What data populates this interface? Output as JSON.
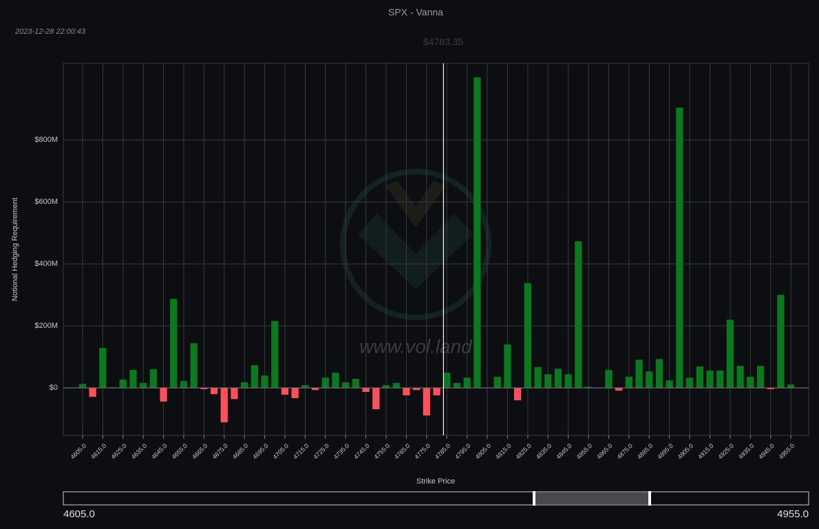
{
  "chart_data": {
    "type": "bar",
    "title": "SPX - Vanna",
    "timestamp": "2023-12-28 22:00:43",
    "spot": 4783.35,
    "spot_label": "$4783.35",
    "watermark": "www.vol.land",
    "x_label": "Strike Price",
    "y_label": "Notional Hedging Requirement",
    "x": [
      4605,
      4610,
      4615,
      4620,
      4625,
      4630,
      4635,
      4640,
      4645,
      4650,
      4655,
      4660,
      4665,
      4670,
      4675,
      4680,
      4685,
      4690,
      4695,
      4700,
      4705,
      4710,
      4715,
      4720,
      4725,
      4730,
      4735,
      4740,
      4745,
      4750,
      4755,
      4760,
      4765,
      4770,
      4775,
      4780,
      4785,
      4790,
      4795,
      4800,
      4805,
      4810,
      4815,
      4820,
      4825,
      4830,
      4835,
      4840,
      4845,
      4850,
      4855,
      4860,
      4865,
      4870,
      4875,
      4880,
      4885,
      4890,
      4895,
      4900,
      4905,
      4910,
      4915,
      4920,
      4925,
      4930,
      4935,
      4940,
      4945,
      4950,
      4955
    ],
    "values": [
      13,
      -29,
      129,
      2,
      27,
      58,
      16,
      60,
      -44,
      287,
      22,
      144,
      -4,
      -20,
      -111,
      -36,
      18,
      73,
      40,
      216,
      -22,
      -33,
      9,
      -7,
      33,
      49,
      18,
      29,
      -13,
      -69,
      9,
      16,
      -24,
      -7,
      -89,
      -24,
      49,
      16,
      33,
      1002,
      1,
      36,
      140,
      -40,
      338,
      67,
      44,
      62,
      44,
      473,
      4,
      1,
      58,
      -9,
      36,
      91,
      53,
      93,
      24,
      904,
      33,
      69,
      56,
      56,
      220,
      71,
      36,
      71,
      -4,
      300,
      11
    ],
    "positive_color": "#0a7a1f",
    "negative_color": "#ff4f5a",
    "xlim": [
      4595.5,
      4963.8
    ],
    "ylim": [
      -153,
      1047
    ],
    "xticks": [
      {
        "value": 4605,
        "label": "4605.0"
      },
      {
        "value": 4615,
        "label": "4615.0"
      },
      {
        "value": 4625,
        "label": "4625.0"
      },
      {
        "value": 4635,
        "label": "4635.0"
      },
      {
        "value": 4645,
        "label": "4645.0"
      },
      {
        "value": 4655,
        "label": "4655.0"
      },
      {
        "value": 4665,
        "label": "4665.0"
      },
      {
        "value": 4675,
        "label": "4675.0"
      },
      {
        "value": 4685,
        "label": "4685.0"
      },
      {
        "value": 4695,
        "label": "4695.0"
      },
      {
        "value": 4705,
        "label": "4705.0"
      },
      {
        "value": 4715,
        "label": "4715.0"
      },
      {
        "value": 4725,
        "label": "4725.0"
      },
      {
        "value": 4735,
        "label": "4735.0"
      },
      {
        "value": 4745,
        "label": "4745.0"
      },
      {
        "value": 4755,
        "label": "4755.0"
      },
      {
        "value": 4765,
        "label": "4765.0"
      },
      {
        "value": 4775,
        "label": "4775.0"
      },
      {
        "value": 4785,
        "label": "4785.0"
      },
      {
        "value": 4795,
        "label": "4795.0"
      },
      {
        "value": 4805,
        "label": "4805.0"
      },
      {
        "value": 4815,
        "label": "4815.0"
      },
      {
        "value": 4825,
        "label": "4825.0"
      },
      {
        "value": 4835,
        "label": "4835.0"
      },
      {
        "value": 4845,
        "label": "4845.0"
      },
      {
        "value": 4855,
        "label": "4855.0"
      },
      {
        "value": 4865,
        "label": "4865.0"
      },
      {
        "value": 4875,
        "label": "4875.0"
      },
      {
        "value": 4885,
        "label": "4885.0"
      },
      {
        "value": 4895,
        "label": "4895.0"
      },
      {
        "value": 4905,
        "label": "4905.0"
      },
      {
        "value": 4915,
        "label": "4915.0"
      },
      {
        "value": 4925,
        "label": "4925.0"
      },
      {
        "value": 4935,
        "label": "4935.0"
      },
      {
        "value": 4945,
        "label": "4945.0"
      },
      {
        "value": 4955,
        "label": "4955.0"
      }
    ],
    "yticks": [
      {
        "value": 0,
        "label": "$0"
      },
      {
        "value": 200,
        "label": "$200M"
      },
      {
        "value": 400,
        "label": "$400M"
      },
      {
        "value": 600,
        "label": "$600M"
      },
      {
        "value": 800,
        "label": "$800M"
      }
    ],
    "grid": true,
    "range_slider": {
      "min_label": "4605.0",
      "max_label": "4955.0"
    }
  }
}
